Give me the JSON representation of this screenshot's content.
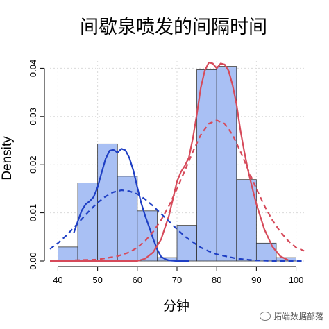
{
  "chart_data": {
    "type": "bar",
    "title": "间歇泉喷发的间隔时间",
    "xlabel": "分钟",
    "ylabel": "Density",
    "xlim": [
      38,
      102
    ],
    "ylim": [
      0,
      0.0415
    ],
    "xticks": [
      40,
      50,
      60,
      70,
      80,
      90,
      100
    ],
    "yticks": [
      0.0,
      0.01,
      0.02,
      0.03,
      0.04
    ],
    "ytick_labels": [
      "0.00",
      "0.01",
      "0.02",
      "0.03",
      "0.04"
    ],
    "grid": true,
    "histogram": {
      "bin_edges": [
        40,
        45,
        50,
        55,
        60,
        65,
        70,
        75,
        80,
        85,
        90,
        95,
        100
      ],
      "density": [
        0.0029,
        0.0162,
        0.0243,
        0.0176,
        0.0104,
        0.0007,
        0.0074,
        0.0397,
        0.0404,
        0.0169,
        0.0037,
        0.0007
      ],
      "color": "#a9c0f4"
    },
    "series": [
      {
        "style": "solid",
        "color": "#1f3fc4",
        "x": [
          44,
          45,
          46,
          47,
          48,
          49,
          50,
          51,
          52,
          53,
          54,
          55,
          56,
          57,
          58,
          59,
          60,
          61,
          62,
          63,
          64,
          65,
          66,
          67,
          68,
          70,
          73
        ],
        "y": [
          0.0058,
          0.0082,
          0.0105,
          0.0118,
          0.0124,
          0.0133,
          0.0153,
          0.0183,
          0.0212,
          0.0229,
          0.0231,
          0.0225,
          0.0233,
          0.023,
          0.0214,
          0.0188,
          0.0153,
          0.012,
          0.0093,
          0.007,
          0.0046,
          0.0024,
          0.0009,
          0.0004,
          0.0001,
          0.0,
          0.0
        ]
      },
      {
        "style": "solid",
        "color": "#d64a5a",
        "x": [
          38,
          60,
          62,
          64,
          66,
          68,
          70,
          71,
          72,
          73,
          74,
          75,
          76,
          77,
          78,
          79,
          80,
          81,
          82,
          83,
          84,
          85,
          86,
          87,
          88,
          89,
          90,
          92,
          94,
          96,
          98
        ],
        "y": [
          0.0,
          0.0,
          0.0005,
          0.0018,
          0.0045,
          0.0095,
          0.0165,
          0.0185,
          0.0198,
          0.0215,
          0.0255,
          0.0305,
          0.036,
          0.0395,
          0.0412,
          0.041,
          0.04,
          0.041,
          0.0408,
          0.0395,
          0.0365,
          0.0325,
          0.027,
          0.0225,
          0.0185,
          0.015,
          0.0118,
          0.0066,
          0.003,
          0.001,
          0.0002
        ]
      },
      {
        "style": "dashed",
        "color": "#1f3fc4",
        "x": [
          38,
          40,
          42,
          44,
          46,
          48,
          50,
          52,
          54,
          56,
          58,
          60,
          62,
          64,
          66,
          68,
          70,
          72,
          74,
          76,
          78,
          80,
          85,
          90,
          95,
          100,
          102
        ],
        "y": [
          0.0025,
          0.0037,
          0.0052,
          0.0069,
          0.0087,
          0.0105,
          0.0121,
          0.0134,
          0.0143,
          0.0147,
          0.0145,
          0.0139,
          0.0128,
          0.0114,
          0.0098,
          0.0082,
          0.0066,
          0.0051,
          0.0039,
          0.0028,
          0.002,
          0.0014,
          0.0005,
          0.0001,
          0.0,
          0.0,
          0.0
        ]
      },
      {
        "style": "dashed",
        "color": "#d64a5a",
        "x": [
          38,
          50,
          55,
          58,
          60,
          62,
          64,
          66,
          68,
          70,
          72,
          74,
          76,
          78,
          80,
          82,
          84,
          86,
          88,
          90,
          92,
          94,
          96,
          98,
          100,
          102
        ],
        "y": [
          0.0,
          0.0003,
          0.001,
          0.0018,
          0.0028,
          0.0042,
          0.0061,
          0.0085,
          0.0115,
          0.015,
          0.0188,
          0.0227,
          0.0262,
          0.0285,
          0.0292,
          0.0285,
          0.0262,
          0.0227,
          0.0188,
          0.015,
          0.0115,
          0.0085,
          0.0061,
          0.0042,
          0.0028,
          0.0021
        ]
      }
    ]
  },
  "watermark": {
    "text": "拓端数据部落"
  }
}
